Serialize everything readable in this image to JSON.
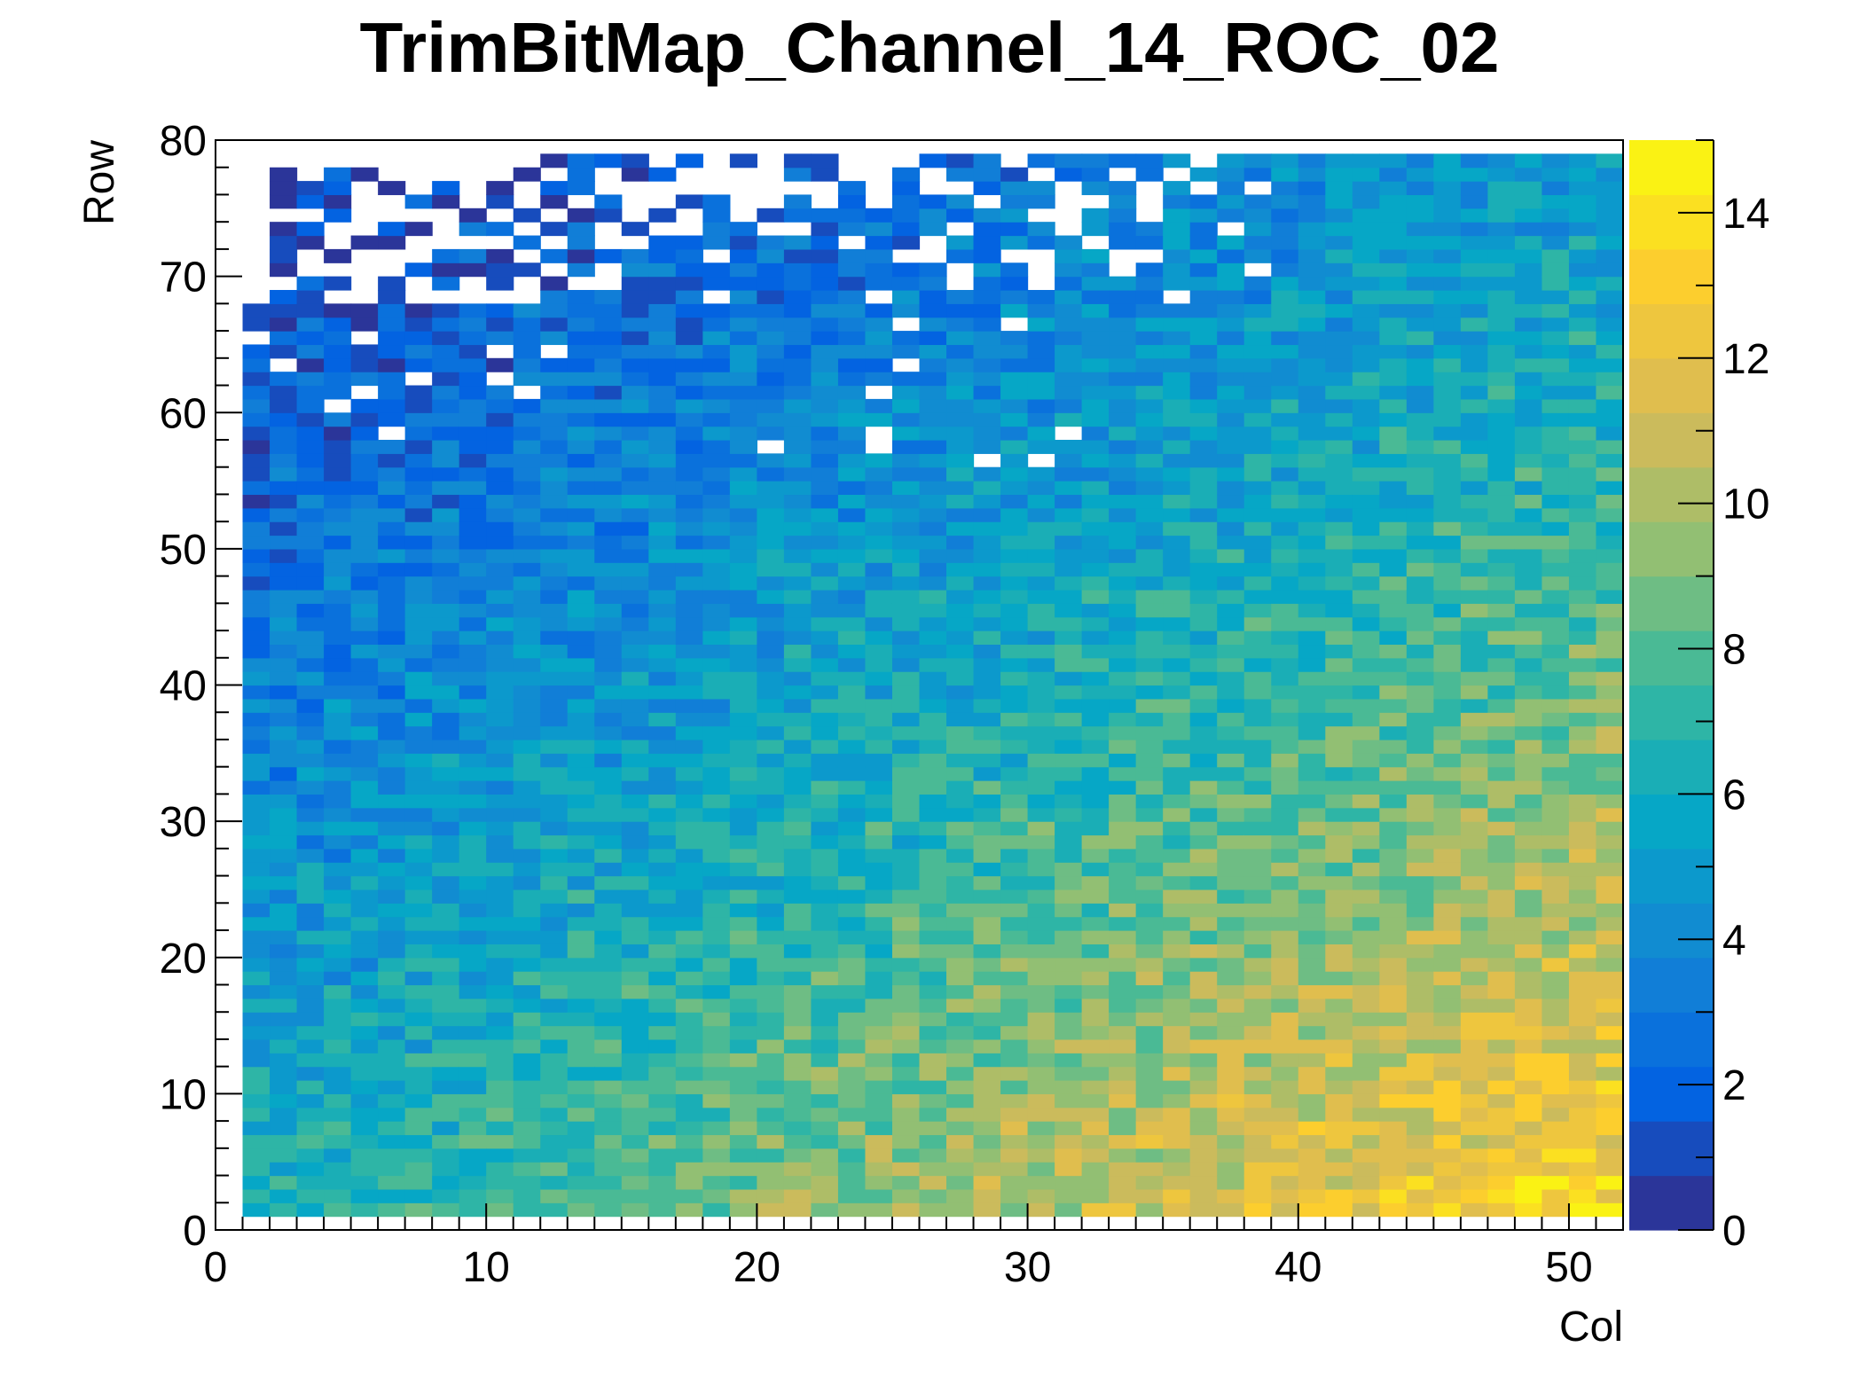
{
  "chart_data": {
    "type": "heatmap",
    "title": "TrimBitMap_Channel_14_ROC_02",
    "xlabel": "Col",
    "ylabel": "Row",
    "xlim": [
      0,
      52
    ],
    "ylim": [
      0,
      80
    ],
    "zlim": [
      0,
      15
    ],
    "x_ticks": [
      "0",
      "10",
      "20",
      "30",
      "40",
      "50"
    ],
    "y_ticks": [
      "0",
      "10",
      "20",
      "30",
      "40",
      "50",
      "60",
      "70",
      "80"
    ],
    "z_ticks": [
      "0",
      "2",
      "4",
      "6",
      "8",
      "10",
      "12",
      "14"
    ],
    "palette": "kBird",
    "colors": [
      "#352a87",
      "#0363e1",
      "#1485d4",
      "#06a7c6",
      "#38b99e",
      "#92bf73",
      "#d9ba56",
      "#fcce2e",
      "#f9fb0e"
    ],
    "empty_bins": "white",
    "pattern": "value increases toward col 52 / row 0 (yellow ~12-15), decreases toward row 80 (blue ~0-3), with empty (white) bins mainly at rows 68-80 for cols 1-38"
  }
}
